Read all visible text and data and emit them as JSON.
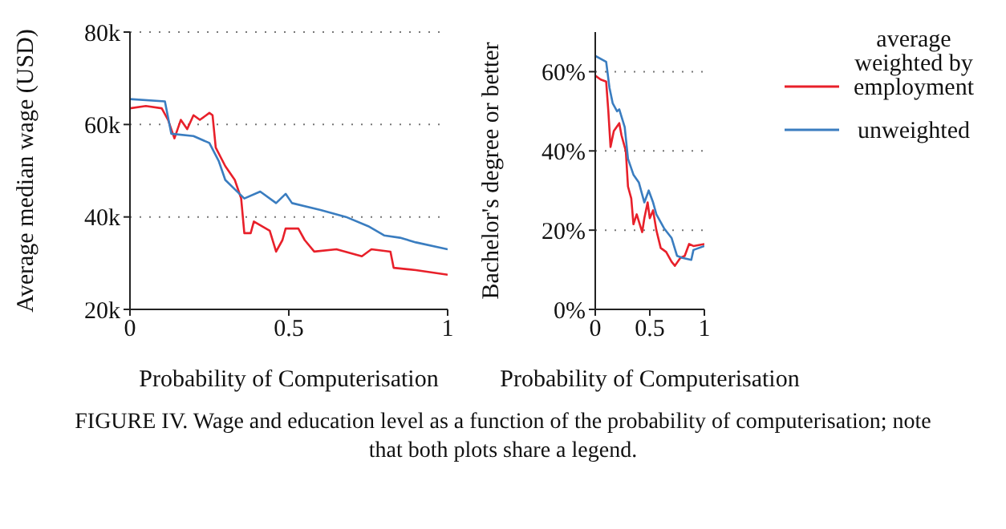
{
  "chart_data": [
    {
      "type": "line",
      "xlabel": "Probability of Computerisation",
      "ylabel": "Average median wage (USD)",
      "xlim": [
        0,
        1
      ],
      "xticks": [
        0,
        0.5,
        1
      ],
      "ylim": [
        20000,
        80000
      ],
      "yticks": [
        {
          "value": 20000,
          "label": "20k"
        },
        {
          "value": 40000,
          "label": "40k"
        },
        {
          "value": 60000,
          "label": "60k"
        },
        {
          "value": 80000,
          "label": "80k"
        }
      ],
      "grid": "y",
      "legend": false,
      "marker": "none",
      "line_style": "solid",
      "series": [
        {
          "color": "#e8202a",
          "x": [
            0,
            0.05,
            0.1,
            0.12,
            0.14,
            0.16,
            0.18,
            0.2,
            0.22,
            0.25,
            0.26,
            0.27,
            0.3,
            0.33,
            0.35,
            0.36,
            0.38,
            0.39,
            0.44,
            0.46,
            0.48,
            0.49,
            0.53,
            0.55,
            0.58,
            0.65,
            0.73,
            0.76,
            0.82,
            0.83,
            0.9,
            1
          ],
          "values": [
            63500,
            64000,
            63500,
            61000,
            57000,
            61000,
            59000,
            62000,
            61000,
            62500,
            62000,
            55000,
            51000,
            48000,
            44000,
            36500,
            36500,
            39000,
            37000,
            32500,
            35000,
            37500,
            37500,
            35000,
            32500,
            33000,
            31500,
            33000,
            32500,
            29000,
            28500,
            27500
          ]
        },
        {
          "color": "#3a7dc0",
          "x": [
            0,
            0.11,
            0.13,
            0.2,
            0.25,
            0.28,
            0.3,
            0.33,
            0.36,
            0.41,
            0.46,
            0.49,
            0.51,
            0.6,
            0.68,
            0.75,
            0.8,
            0.85,
            0.9,
            1
          ],
          "values": [
            65500,
            65000,
            58000,
            57500,
            56000,
            52000,
            48000,
            46000,
            44000,
            45500,
            43000,
            45000,
            43000,
            41500,
            40000,
            38000,
            36000,
            35500,
            34500,
            33000
          ]
        }
      ],
      "annotations": [
        "FIGURE IV. Wage and education level as a function of the probability of computerisation; note that both plots share a legend."
      ]
    },
    {
      "type": "line",
      "xlabel": "Probability of Computerisation",
      "ylabel": "Bachelor's degree or better",
      "xlim": [
        0,
        1
      ],
      "xticks": [
        0,
        0.5,
        1
      ],
      "ylim": [
        0,
        70
      ],
      "yticks": [
        {
          "value": 0,
          "label": "0%"
        },
        {
          "value": 20,
          "label": "20%"
        },
        {
          "value": 40,
          "label": "40%"
        },
        {
          "value": 60,
          "label": "60%"
        }
      ],
      "grid": "y",
      "legend": "top right",
      "marker": "none",
      "line_style": "solid",
      "series": [
        {
          "name": "average weighted by employment",
          "color": "#e8202a",
          "x": [
            0,
            0.05,
            0.1,
            0.12,
            0.14,
            0.17,
            0.22,
            0.24,
            0.28,
            0.3,
            0.33,
            0.35,
            0.38,
            0.43,
            0.45,
            0.48,
            0.5,
            0.53,
            0.56,
            0.6,
            0.65,
            0.7,
            0.73,
            0.78,
            0.82,
            0.86,
            0.9,
            1
          ],
          "values": [
            59,
            58,
            57.5,
            50,
            41,
            45,
            47,
            44,
            40,
            31,
            28,
            21.5,
            24,
            19.5,
            23,
            27,
            23,
            25,
            20,
            15.5,
            14.5,
            12,
            11,
            13,
            13.5,
            16.5,
            16,
            16.5
          ]
        },
        {
          "name": "unweighted",
          "color": "#3a7dc0",
          "x": [
            0,
            0.1,
            0.13,
            0.16,
            0.2,
            0.22,
            0.27,
            0.3,
            0.35,
            0.4,
            0.45,
            0.49,
            0.53,
            0.56,
            0.63,
            0.7,
            0.75,
            0.8,
            0.88,
            0.9,
            1
          ],
          "values": [
            64,
            62.5,
            56,
            52,
            50,
            50.5,
            46,
            38,
            34,
            32,
            27,
            30,
            27,
            24,
            20.5,
            18,
            13.5,
            13,
            12.5,
            15,
            16
          ]
        }
      ]
    }
  ]
}
